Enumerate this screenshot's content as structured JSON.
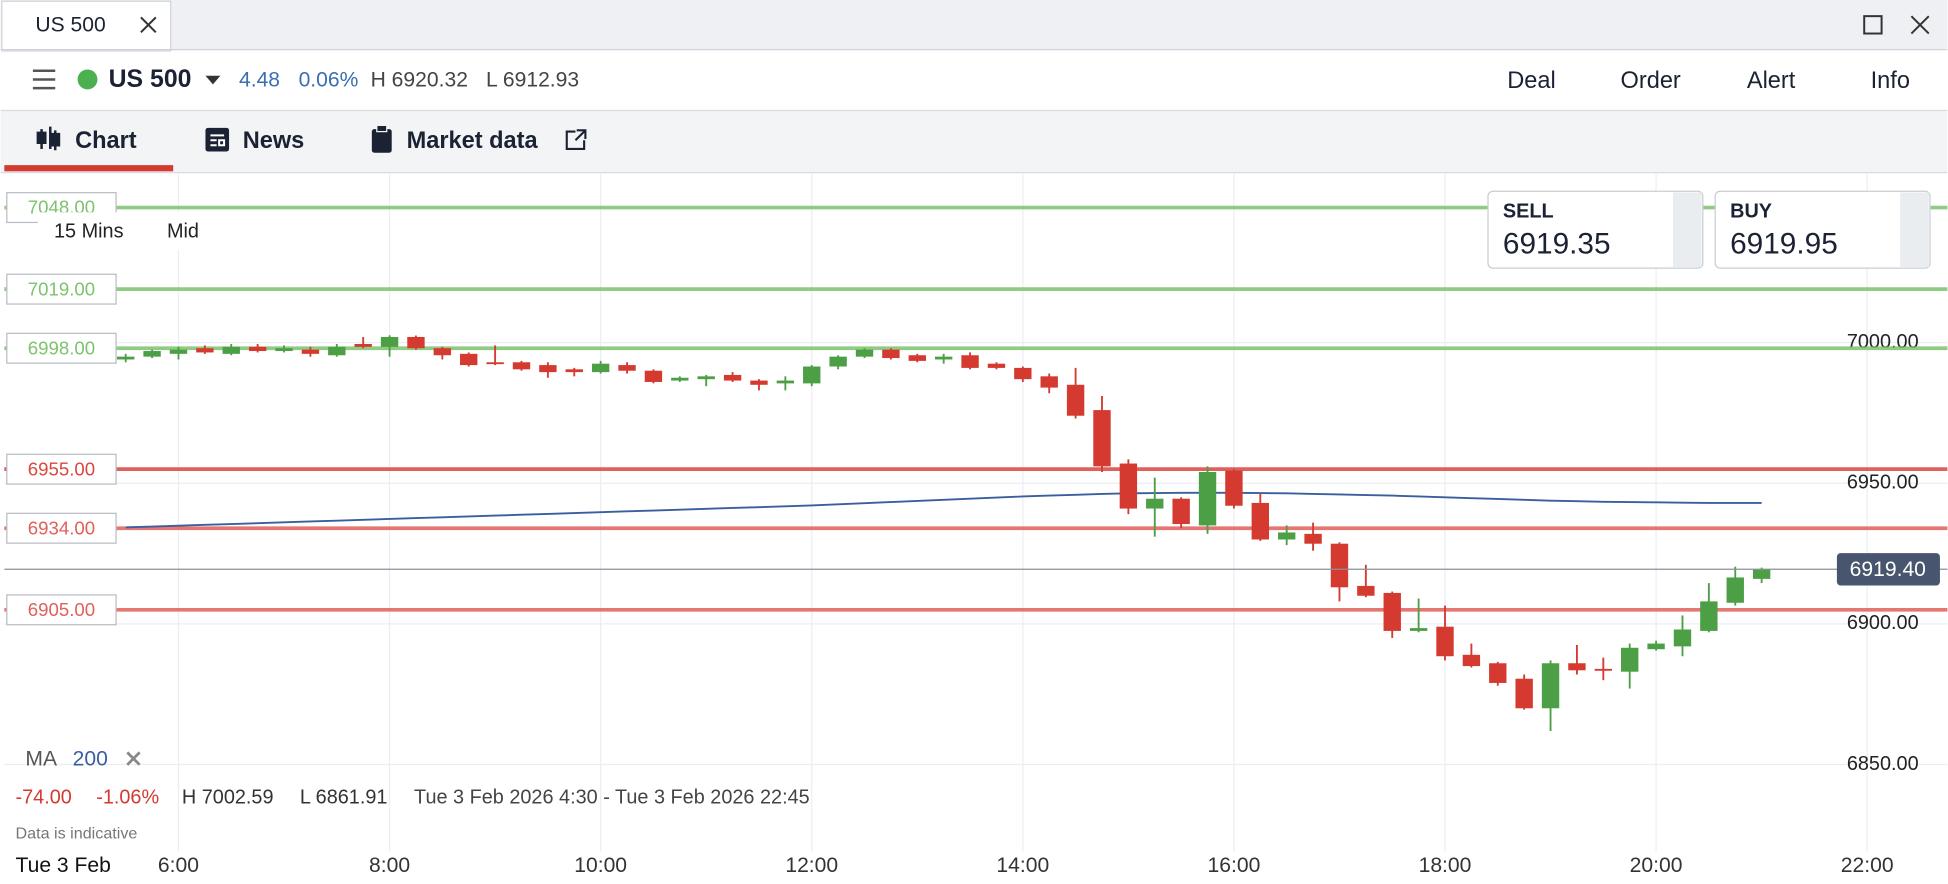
{
  "window": {
    "tab_title": "US 500"
  },
  "toolbar": {
    "instrument": "US 500",
    "change": "4.48",
    "change_pct": "0.06%",
    "high": "H 6920.32",
    "low": "L 6912.93",
    "actions": [
      "Deal",
      "Order",
      "Alert",
      "Info"
    ]
  },
  "tabs": [
    "Chart",
    "News",
    "Market data"
  ],
  "quote": {
    "sell_label": "SELL",
    "sell": "6919.35",
    "buy_label": "BUY",
    "buy": "6919.95"
  },
  "chart_data": {
    "type": "candlestick",
    "interval": "15 Mins",
    "price_type": "Mid",
    "up_color": "#4c9f45",
    "down_color": "#d43a2f",
    "x": [
      5.5,
      5.75,
      6,
      6.25,
      6.5,
      6.75,
      7,
      7.25,
      7.5,
      7.75,
      8,
      8.25,
      8.5,
      8.75,
      9,
      9.25,
      9.5,
      9.75,
      10,
      10.25,
      10.5,
      10.75,
      11,
      11.25,
      11.5,
      11.75,
      12,
      12.25,
      12.5,
      12.75,
      13,
      13.25,
      13.5,
      13.75,
      14,
      14.25,
      14.5,
      14.75,
      15,
      15.25,
      15.5,
      15.75,
      16,
      16.25,
      16.5,
      16.75,
      17,
      17.25,
      17.5,
      17.75,
      18,
      18.25,
      18.5,
      18.75,
      19,
      19.25,
      19.5,
      19.75,
      20,
      20.25,
      20.5,
      20.75,
      21
    ],
    "open": [
      6994,
      6995,
      6996,
      6998,
      6996,
      6998.5,
      6997,
      6997.5,
      6995.5,
      6999.5,
      6998.5,
      7002,
      6998,
      6996,
      6993,
      6993,
      6992,
      6990.5,
      6989.5,
      6992,
      6990,
      6986.5,
      6987,
      6988.5,
      6986.5,
      6985.5,
      6985.5,
      6991.5,
      6995,
      6997.5,
      6995.5,
      6994,
      6995.5,
      6992.5,
      6991,
      6988,
      6985,
      6976,
      6957,
      6941,
      6944.5,
      6935,
      6954.5,
      6943,
      6930,
      6932,
      6928.5,
      6913.5,
      6911,
      6897.5,
      6899,
      6889,
      6886,
      6880.5,
      6870,
      6886,
      6884,
      6883,
      6891,
      6892,
      6897.5,
      6907.5,
      6916
    ],
    "high": [
      6996,
      6997.5,
      6998.5,
      6999,
      6999.5,
      6999.5,
      6999,
      6998.5,
      6999.5,
      7002,
      7002.59,
      7002.5,
      6998.5,
      6996.5,
      6999,
      6993.5,
      6993,
      6991,
      6993.5,
      6993,
      6990.5,
      6988,
      6988.5,
      6989.5,
      6987,
      6988,
      6992,
      6995.5,
      6998,
      6998,
      6996,
      6996,
      6996.5,
      6993,
      6991.5,
      6989,
      6991,
      6981,
      6958.5,
      6952,
      6945,
      6956,
      6955,
      6946.5,
      6935,
      6936,
      6929,
      6921,
      6911.5,
      6909,
      6906.5,
      6893,
      6886.5,
      6882,
      6887,
      6892.5,
      6888,
      6893,
      6894,
      6903,
      6914.5,
      6920.32,
      6920
    ],
    "low": [
      6993,
      6994.5,
      6994,
      6996,
      6995.5,
      6996.5,
      6996.5,
      6995,
      6995,
      6998,
      6995,
      6997.5,
      6994,
      6991.5,
      6992,
      6990,
      6987.5,
      6988,
      6989,
      6989,
      6985.5,
      6986,
      6984.5,
      6986,
      6983,
      6983,
      6984.5,
      6990.5,
      6994.5,
      6994,
      6993,
      6992.5,
      6990.5,
      6990.5,
      6986,
      6982,
      6973,
      6954,
      6939,
      6931,
      6934,
      6932,
      6941,
      6929.5,
      6928,
      6926,
      6908,
      6909.5,
      6895,
      6897,
      6887,
      6884.5,
      6878,
      6869.5,
      6861.91,
      6882,
      6880,
      6877,
      6890.5,
      6888.5,
      6897,
      6906.5,
      6914.5
    ],
    "close": [
      6995,
      6997,
      6997.5,
      6996.5,
      6998.5,
      6997,
      6998,
      6996,
      6998.5,
      6998.5,
      7002,
      6998,
      6995.5,
      6992,
      6992.5,
      6990.5,
      6989.5,
      6989.5,
      6992.5,
      6990,
      6986,
      6987.5,
      6988,
      6986.5,
      6985,
      6986.5,
      6991.5,
      6995,
      6997.5,
      6994.5,
      6993.5,
      6995,
      6991,
      6991,
      6987,
      6984,
      6974,
      6956,
      6941,
      6944.5,
      6935.5,
      6954,
      6942,
      6930,
      6932.5,
      6928.5,
      6913,
      6910,
      6897.5,
      6898.5,
      6888.5,
      6885,
      6879,
      6870,
      6886,
      6883.5,
      6883.5,
      6891.5,
      6893,
      6898,
      6908,
      6916.5,
      6919.4
    ],
    "ma": {
      "label": "MA",
      "period": "200",
      "color": "#3a5f9e",
      "values": [
        6934.3,
        6934.6,
        6934.9,
        6935.2,
        6935.5,
        6935.8,
        6936.1,
        6936.4,
        6936.7,
        6937.0,
        6937.3,
        6937.6,
        6937.9,
        6938.2,
        6938.5,
        6938.8,
        6939.1,
        6939.4,
        6939.7,
        6940.0,
        6940.3,
        6940.6,
        6940.9,
        6941.2,
        6941.5,
        6941.8,
        6942.1,
        6942.5,
        6942.9,
        6943.3,
        6943.7,
        6944.1,
        6944.5,
        6944.9,
        6945.3,
        6945.6,
        6945.9,
        6946.2,
        6946.4,
        6946.5,
        6946.6,
        6946.6,
        6946.6,
        6946.5,
        6946.4,
        6946.2,
        6946.0,
        6945.8,
        6945.6,
        6945.3,
        6945.0,
        6944.7,
        6944.4,
        6944.1,
        6943.8,
        6943.6,
        6943.4,
        6943.3,
        6943.2,
        6943.1,
        6943.0,
        6943.0,
        6943.0
      ]
    },
    "levels": [
      {
        "value": 7048,
        "label": "7048.00",
        "color": "#7cc36d"
      },
      {
        "value": 7019,
        "label": "7019.00",
        "color": "#7cc36d"
      },
      {
        "value": 6998,
        "label": "6998.00",
        "color": "#7cc36d"
      },
      {
        "value": 6955,
        "label": "6955.00",
        "color": "#d9473f"
      },
      {
        "value": 6934,
        "label": "6934.00",
        "color": "#e0605a"
      },
      {
        "value": 6905,
        "label": "6905.00",
        "color": "#e0605a"
      }
    ],
    "current": {
      "value": 6919.4,
      "label": "6919.40",
      "color": "#47566e"
    },
    "ylim": [
      6819,
      7060
    ],
    "yticks": [
      {
        "value": 6850,
        "label": "6850.00"
      },
      {
        "value": 6900,
        "label": "6900.00"
      },
      {
        "value": 6950,
        "label": "6950.00"
      },
      {
        "value": 7000,
        "label": "7000.00"
      }
    ],
    "xlim": [
      4.35,
      22.76
    ],
    "xticks": [
      {
        "value": 6,
        "label": "6:00"
      },
      {
        "value": 8,
        "label": "8:00"
      },
      {
        "value": 10,
        "label": "10:00"
      },
      {
        "value": 12,
        "label": "12:00"
      },
      {
        "value": 14,
        "label": "14:00"
      },
      {
        "value": 16,
        "label": "16:00"
      },
      {
        "value": 18,
        "label": "18:00"
      },
      {
        "value": 20,
        "label": "20:00"
      },
      {
        "value": 22,
        "label": "22:00"
      }
    ],
    "date_label": "Tue 3 Feb",
    "stats": {
      "change": "-74.00",
      "change_pct": "-1.06%",
      "high": "H 7002.59",
      "low": "L 6861.91",
      "range": "Tue 3 Feb 2026 4:30 - Tue 3 Feb 2026 22:45"
    },
    "note": "Data is indicative"
  }
}
